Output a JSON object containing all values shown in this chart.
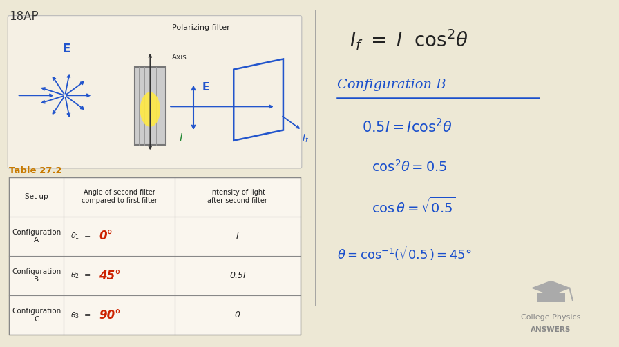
{
  "bg_color": "#ede8d5",
  "label_18ap": "18AP",
  "label_18ap_color": "#333333",
  "label_18ap_fontsize": 12,
  "table_title": "Table 27.2",
  "table_title_color": "#c87a00",
  "handwritten_color_blue": "#1a4fcc",
  "handwritten_color_red": "#cc2200",
  "handwritten_color_dark": "#222222",
  "polarizing_filter_label": "Polarizing filter",
  "axis_label": "Axis",
  "E_label": "E",
  "I_label": "I",
  "logo_text1": "College Physics",
  "logo_text2": "ANSWERS"
}
